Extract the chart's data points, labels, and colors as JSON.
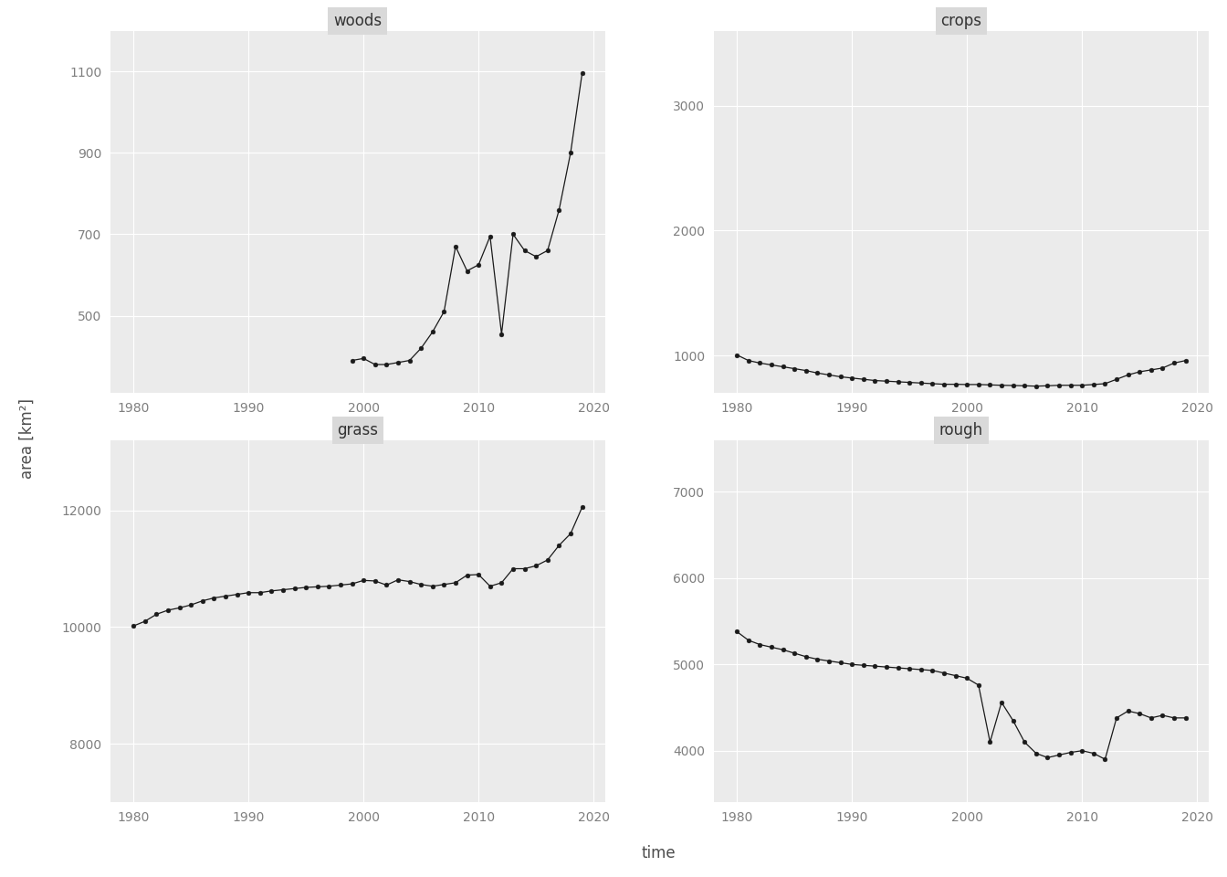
{
  "years": [
    1980,
    1981,
    1982,
    1983,
    1984,
    1985,
    1986,
    1987,
    1988,
    1989,
    1990,
    1991,
    1992,
    1993,
    1994,
    1995,
    1996,
    1997,
    1998,
    1999,
    2000,
    2001,
    2002,
    2003,
    2004,
    2005,
    2006,
    2007,
    2008,
    2009,
    2010,
    2011,
    2012,
    2013,
    2014,
    2015,
    2016,
    2017,
    2018,
    2019
  ],
  "woods": [
    null,
    null,
    null,
    null,
    null,
    null,
    null,
    null,
    null,
    null,
    null,
    null,
    null,
    null,
    null,
    null,
    null,
    null,
    null,
    390,
    395,
    380,
    380,
    385,
    390,
    420,
    460,
    510,
    670,
    610,
    625,
    695,
    455,
    700,
    660,
    645,
    660,
    760,
    900,
    1095
  ],
  "crops": [
    1005,
    960,
    940,
    925,
    910,
    895,
    880,
    860,
    845,
    830,
    820,
    810,
    800,
    795,
    790,
    785,
    780,
    775,
    770,
    770,
    768,
    768,
    765,
    762,
    760,
    758,
    755,
    758,
    762,
    762,
    762,
    768,
    775,
    810,
    845,
    870,
    885,
    900,
    940,
    960
  ],
  "grass": [
    10020,
    10100,
    10220,
    10290,
    10330,
    10380,
    10450,
    10500,
    10530,
    10560,
    10590,
    10590,
    10620,
    10640,
    10660,
    10680,
    10690,
    10700,
    10720,
    10740,
    10800,
    10790,
    10720,
    10810,
    10780,
    10730,
    10700,
    10730,
    10760,
    10890,
    10900,
    10700,
    10760,
    11000,
    11000,
    11050,
    11150,
    11400,
    11600,
    12050
  ],
  "rough": [
    5380,
    5280,
    5230,
    5200,
    5170,
    5130,
    5090,
    5060,
    5040,
    5020,
    5000,
    4990,
    4980,
    4970,
    4960,
    4950,
    4940,
    4930,
    4900,
    4870,
    4840,
    4760,
    4100,
    4560,
    4350,
    4100,
    3970,
    3920,
    3950,
    3980,
    4000,
    3970,
    3900,
    4380,
    4460,
    4430,
    4380,
    4410,
    4380,
    4380
  ],
  "panel_bg": "#EBEBEB",
  "outer_bg": "#FFFFFF",
  "line_color": "#1a1a1a",
  "marker_color": "#1a1a1a",
  "grid_color": "#FFFFFF",
  "strip_bg": "#D9D9D9",
  "strip_text_color": "#333333",
  "axis_text_color": "#7f7f7f",
  "axis_label_color": "#4d4d4d",
  "title_fontsize": 12,
  "axis_fontsize": 12,
  "tick_fontsize": 10,
  "woods_yticks": [
    500,
    700,
    900,
    1100
  ],
  "crops_yticks": [
    1000,
    2000,
    3000
  ],
  "grass_yticks": [
    8000,
    10000,
    12000
  ],
  "rough_yticks": [
    4000,
    5000,
    6000,
    7000
  ],
  "xticks": [
    1980,
    1990,
    2000,
    2010,
    2020
  ],
  "ylabel": "area [km²]",
  "xlabel": "time",
  "woods_ylim": [
    310,
    1200
  ],
  "crops_ylim": [
    700,
    3600
  ],
  "grass_ylim": [
    7000,
    13200
  ],
  "rough_ylim": [
    3400,
    7600
  ]
}
